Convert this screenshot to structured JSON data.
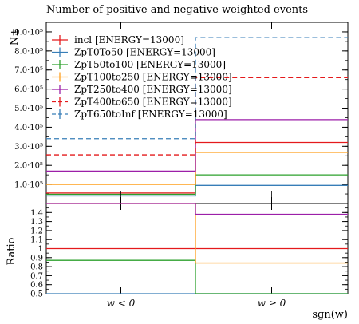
{
  "chart_data": [
    {
      "type": "step",
      "title": "Number of positive and negative weighted events",
      "ylabel": "N±",
      "xlabel": "sgn(w)",
      "categories": [
        "w < 0",
        "w ≥ 0"
      ],
      "ylim": [
        0,
        950000
      ],
      "yticks": [
        "1.0·10⁵",
        "2.0·10⁵",
        "3.0·10⁵",
        "4.0·10⁵",
        "5.0·10⁵",
        "6.0·10⁵",
        "7.0·10⁵",
        "8.0·10⁵",
        "9.0·10⁵"
      ],
      "ytick_values": [
        100000,
        200000,
        300000,
        400000,
        500000,
        600000,
        700000,
        800000,
        900000
      ],
      "legend_position": "top-left",
      "series": [
        {
          "name": "incl [ENERGY=13000]",
          "color": "#e41a1c",
          "dash": false,
          "values": [
            55000,
            320000
          ]
        },
        {
          "name": "ZpT0To50 [ENERGY=13000]",
          "color": "#377eb8",
          "dash": false,
          "values": [
            40000,
            95000
          ]
        },
        {
          "name": "ZpT50to100 [ENERGY=13000]",
          "color": "#2ca02c",
          "dash": false,
          "values": [
            48000,
            150000
          ]
        },
        {
          "name": "ZpT100to250 [ENERGY=13000]",
          "color": "#ff9f1c",
          "dash": false,
          "values": [
            100000,
            268000
          ]
        },
        {
          "name": "ZpT250to400 [ENERGY=13000]",
          "color": "#9c1fa8",
          "dash": false,
          "values": [
            170000,
            440000
          ]
        },
        {
          "name": "ZpT400to650 [ENERGY=13000]",
          "color": "#e41a1c",
          "dash": true,
          "values": [
            255000,
            660000
          ]
        },
        {
          "name": "ZpT650toInf [ENERGY=13000]",
          "color": "#377eb8",
          "dash": true,
          "values": [
            340000,
            870000
          ]
        }
      ]
    },
    {
      "type": "step",
      "ylabel": "Ratio",
      "xlabel": "sgn(w)",
      "categories": [
        "w < 0",
        "w ≥ 0"
      ],
      "ylim": [
        0.5,
        1.5
      ],
      "yticks": [
        "0.5",
        "0.6",
        "0.7",
        "0.8",
        "0.9",
        "1",
        "1.1",
        "1.2",
        "1.3",
        "1.4"
      ],
      "ytick_values": [
        0.5,
        0.6,
        0.7,
        0.8,
        0.9,
        1.0,
        1.1,
        1.2,
        1.3,
        1.4
      ],
      "series": [
        {
          "name": "incl [ENERGY=13000]",
          "color": "#e41a1c",
          "dash": false,
          "values": [
            1.0,
            1.0
          ]
        },
        {
          "name": "ZpT0To50 [ENERGY=13000]",
          "color": "#377eb8",
          "dash": false,
          "values": [
            0.5,
            0.5
          ]
        },
        {
          "name": "ZpT50to100 [ENERGY=13000]",
          "color": "#2ca02c",
          "dash": false,
          "values": [
            0.87,
            0.5
          ]
        },
        {
          "name": "ZpT100to250 [ENERGY=13000]",
          "color": "#ff9f1c",
          "dash": false,
          "values": [
            1.5,
            0.84
          ]
        },
        {
          "name": "ZpT250to400 [ENERGY=13000]",
          "color": "#9c1fa8",
          "dash": false,
          "values": [
            1.5,
            1.38
          ]
        }
      ]
    }
  ]
}
